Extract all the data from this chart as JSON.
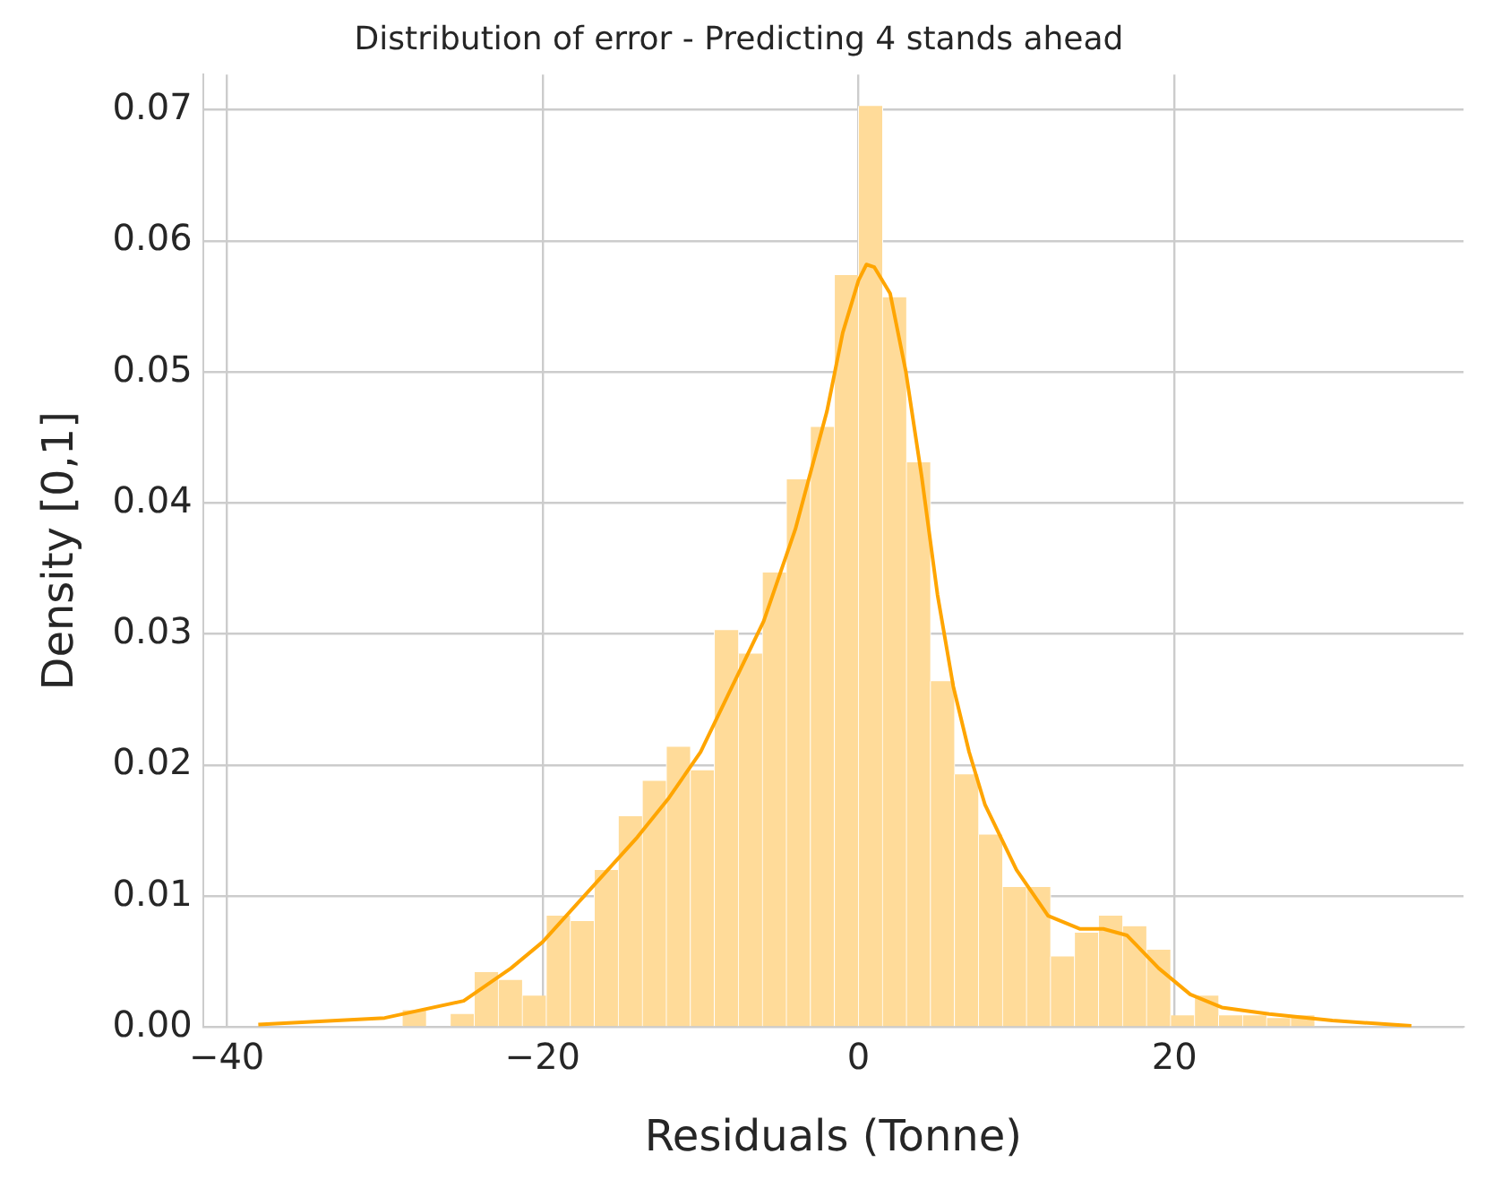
{
  "chart_data": {
    "type": "histogram",
    "title": "Distribution of error - Predicting 4 stands ahead",
    "xlabel": "Residuals (Tonne)",
    "ylabel": "Density [0,1]",
    "bins": [
      -28.88,
      -27.36,
      -25.84,
      -24.32,
      -22.8,
      -21.28,
      -19.76,
      -18.24,
      -16.72,
      -15.2,
      -13.68,
      -12.16,
      -10.64,
      -9.12,
      -7.6,
      -6.08,
      -4.56,
      -3.04,
      -1.52,
      0,
      1.52,
      3.04,
      4.56,
      6.08,
      7.6,
      9.12,
      10.64,
      12.16,
      13.68,
      15.2,
      16.72,
      18.24,
      19.76,
      21.28,
      22.8,
      24.32,
      25.84,
      27.36,
      28.88
    ],
    "values": [
      0.0013,
      0,
      0.001,
      0.0042,
      0.0036,
      0.0024,
      0.0085,
      0.0081,
      0.012,
      0.0161,
      0.0188,
      0.0214,
      0.0196,
      0.0303,
      0.0285,
      0.0347,
      0.0418,
      0.0458,
      0.0574,
      0.0703,
      0.0557,
      0.0431,
      0.0264,
      0.0193,
      0.0147,
      0.0107,
      0.0107,
      0.0054,
      0.0072,
      0.0085,
      0.0077,
      0.0059,
      0.0009,
      0.0024,
      0.0009,
      0.0009,
      0.0007,
      0.0009
    ],
    "color": "#ffdb99",
    "series": [
      {
        "type": "line",
        "color": "#ffa500",
        "x": [
          -38,
          -30,
          -25,
          -22,
          -20,
          -17,
          -14,
          -12,
          -10,
          -8,
          -6,
          -4,
          -2,
          -1,
          0,
          0.5,
          1,
          2,
          3,
          4,
          5,
          6,
          7,
          8,
          10,
          12,
          14,
          15.5,
          17,
          19,
          21,
          23,
          26,
          30,
          35
        ],
        "values": [
          0.0002,
          0.0007,
          0.002,
          0.0045,
          0.0065,
          0.0105,
          0.0145,
          0.0175,
          0.021,
          0.026,
          0.031,
          0.038,
          0.047,
          0.053,
          0.057,
          0.0582,
          0.058,
          0.056,
          0.05,
          0.042,
          0.033,
          0.026,
          0.021,
          0.017,
          0.012,
          0.0085,
          0.0075,
          0.0075,
          0.007,
          0.0045,
          0.0025,
          0.0015,
          0.001,
          0.0005,
          0.0001
        ]
      }
    ],
    "xlim": [
      -41.5,
      38.3
    ],
    "ylim": [
      0,
      0.0727
    ],
    "xticks": [
      {
        "value": -40,
        "label": "−40"
      },
      {
        "value": -20,
        "label": "−20"
      },
      0,
      20
    ],
    "yticks": [
      {
        "value": 0,
        "label": "0.00"
      },
      {
        "value": 0.01,
        "label": "0.01"
      },
      {
        "value": 0.02,
        "label": "0.02"
      },
      {
        "value": 0.03,
        "label": "0.03"
      },
      {
        "value": 0.04,
        "label": "0.04"
      },
      {
        "value": 0.05,
        "label": "0.05"
      },
      {
        "value": 0.06,
        "label": "0.06"
      },
      {
        "value": 0.07,
        "label": "0.07"
      }
    ],
    "grid": true,
    "legend": false
  }
}
